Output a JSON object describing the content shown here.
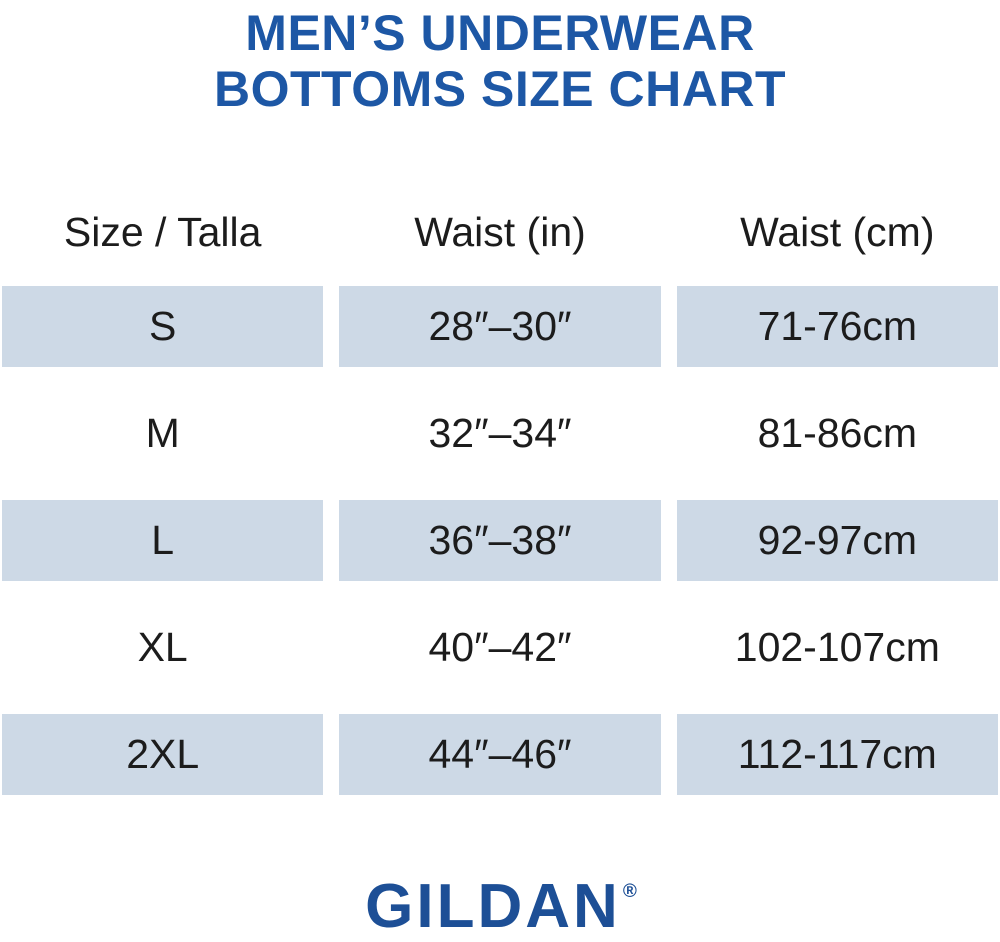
{
  "title": {
    "line1": "MEN’S UNDERWEAR",
    "line2": "BOTTOMS SIZE CHART"
  },
  "table": {
    "headers": [
      "Size / Talla",
      "Waist (in)",
      "Waist (cm)"
    ],
    "rows": [
      {
        "size": "S",
        "waist_in": "28″–30″",
        "waist_cm": "71-76cm"
      },
      {
        "size": "M",
        "waist_in": "32″–34″",
        "waist_cm": "81-86cm"
      },
      {
        "size": "L",
        "waist_in": "36″–38″",
        "waist_cm": "92-97cm"
      },
      {
        "size": "XL",
        "waist_in": "40″–42″",
        "waist_cm": "102-107cm"
      },
      {
        "size": "2XL",
        "waist_in": "44″–46″",
        "waist_cm": "112-117cm"
      }
    ]
  },
  "brand": {
    "name": "GILDAN",
    "registered": "®"
  },
  "colors": {
    "title_blue": "#1d57a5",
    "logo_blue": "#1d4f96",
    "row_shade": "#cdd9e6",
    "text_dark": "#1c1c1c",
    "background": "#ffffff"
  },
  "chart_data": {
    "type": "table",
    "title": "MEN’S UNDERWEAR BOTTOMS SIZE CHART",
    "columns": [
      "Size / Talla",
      "Waist (in)",
      "Waist (cm)"
    ],
    "rows": [
      [
        "S",
        "28″–30″",
        "71-76cm"
      ],
      [
        "M",
        "32″–34″",
        "81-86cm"
      ],
      [
        "L",
        "36″–38″",
        "92-97cm"
      ],
      [
        "XL",
        "40″–42″",
        "102-107cm"
      ],
      [
        "2XL",
        "44″–46″",
        "112-117cm"
      ]
    ],
    "shaded_row_indices": [
      0,
      2,
      4
    ],
    "layout": "three equal column blocks separated by white gutters, alternating shaded bands"
  }
}
